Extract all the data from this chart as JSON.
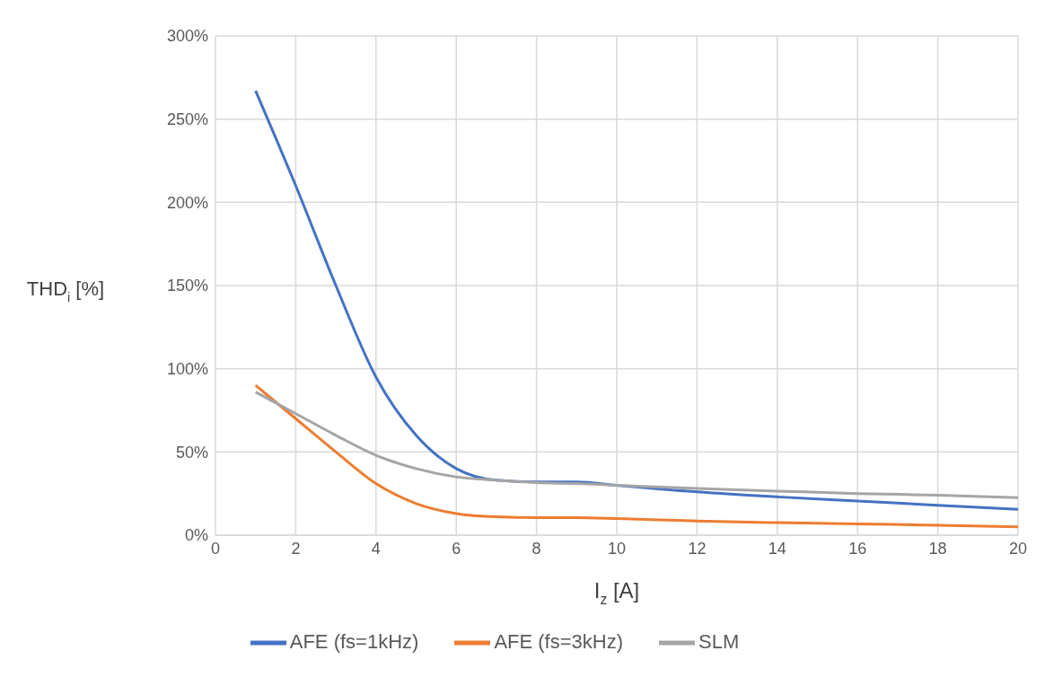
{
  "chart_data": {
    "type": "line",
    "xlabel": "I$_{z}$ [A]",
    "ylabel": "THD$_{i}$ [%]",
    "x": [
      1,
      2,
      3,
      4,
      5,
      6,
      7,
      8,
      9,
      10,
      12,
      14,
      16,
      18,
      20
    ],
    "series": [
      {
        "name": "AFE (fs=1kHz)",
        "color": "#4472c4",
        "values": [
          267,
          210,
          150,
          95,
          60,
          40,
          33,
          32,
          32,
          30,
          26,
          23,
          20.5,
          18,
          15.5
        ]
      },
      {
        "name": "AFE (fs=3kHz)",
        "color": "#ed7d31",
        "values": [
          90,
          70,
          50,
          31,
          19,
          13,
          11,
          10.5,
          10.5,
          10,
          8.5,
          7.5,
          6.7,
          6,
          5
        ]
      },
      {
        "name": "SLM",
        "color": "#a5a5a5",
        "values": [
          86,
          73,
          60,
          48,
          40,
          35,
          33,
          31.5,
          31,
          30,
          28,
          26.5,
          25,
          24,
          22.5
        ]
      }
    ],
    "xlim": [
      0,
      20
    ],
    "xticks": [
      0,
      2,
      4,
      6,
      8,
      10,
      12,
      14,
      16,
      18,
      20
    ],
    "ylim": [
      0,
      300
    ],
    "yticks": [
      {
        "value": 0,
        "label": "0%"
      },
      {
        "value": 50,
        "label": "50%"
      },
      {
        "value": 100,
        "label": "100%"
      },
      {
        "value": 150,
        "label": "150%"
      },
      {
        "value": 200,
        "label": "200%"
      },
      {
        "value": 250,
        "label": "250%"
      },
      {
        "value": 300,
        "label": "300%"
      }
    ],
    "grid": true,
    "legend": "bottom",
    "marker": "none",
    "line_style": "solid"
  }
}
